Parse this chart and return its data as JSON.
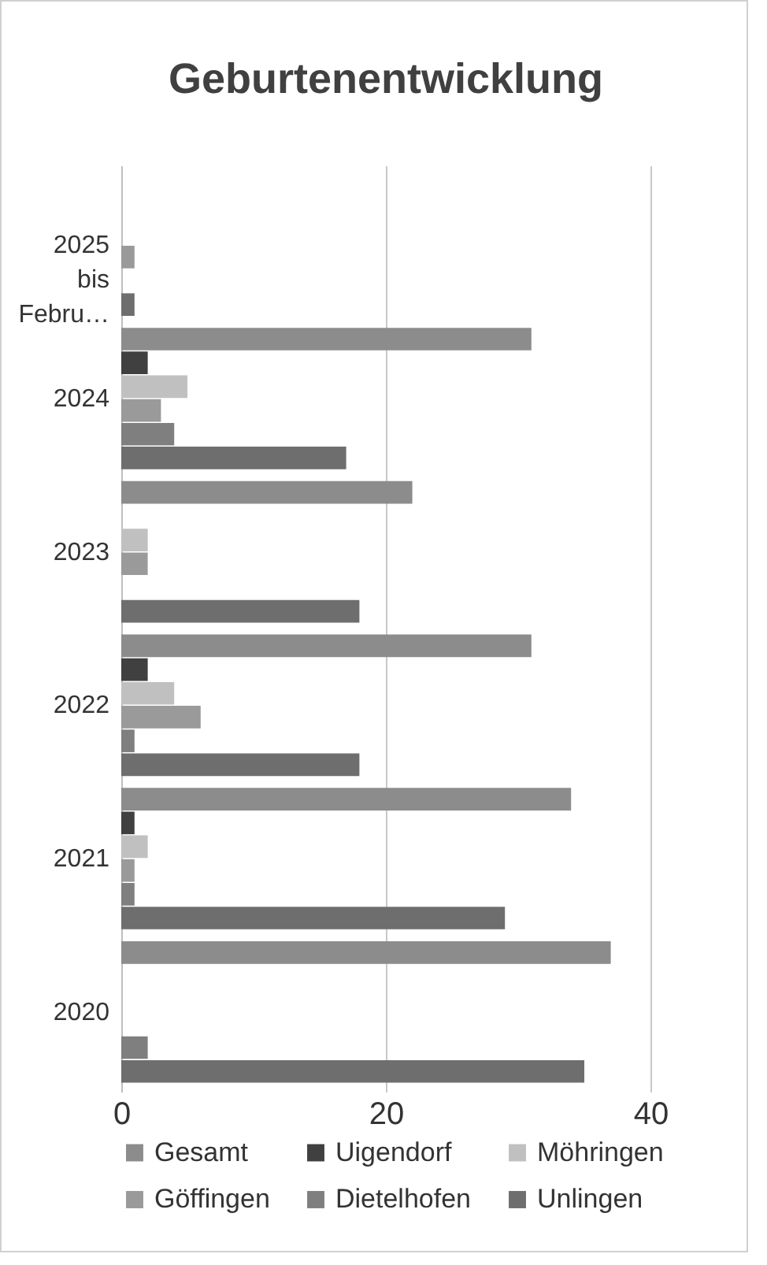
{
  "chart_data": {
    "type": "bar",
    "title": "Geburtenentwicklung",
    "orientation": "horizontal",
    "categories": [
      "2025 bis Febru…",
      "2024",
      "2023",
      "2022",
      "2021",
      "2020"
    ],
    "series": [
      {
        "name": "Gesamt",
        "color": "#8c8c8c",
        "values": [
          null,
          31,
          22,
          31,
          34,
          37
        ]
      },
      {
        "name": "Uigendorf",
        "color": "#404040",
        "values": [
          null,
          2,
          null,
          2,
          1,
          null
        ]
      },
      {
        "name": "Möhringen",
        "color": "#c0c0c0",
        "values": [
          null,
          5,
          2,
          4,
          2,
          null
        ]
      },
      {
        "name": "Göffingen",
        "color": "#9a9a9a",
        "values": [
          1,
          3,
          2,
          6,
          1,
          null
        ]
      },
      {
        "name": "Dietelhofen",
        "color": "#7f7f7f",
        "values": [
          null,
          4,
          null,
          1,
          1,
          2
        ]
      },
      {
        "name": "Unlingen",
        "color": "#6e6e6e",
        "values": [
          1,
          17,
          18,
          18,
          29,
          35
        ]
      }
    ],
    "xlim": [
      0,
      40
    ],
    "xticks": [
      0,
      20,
      40
    ],
    "grid": "x",
    "legend": "bottom"
  }
}
